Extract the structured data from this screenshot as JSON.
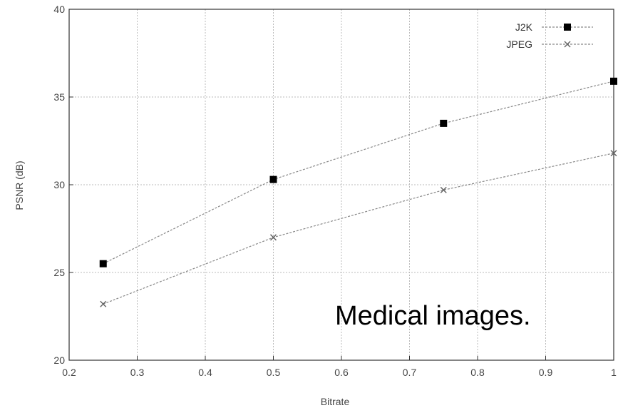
{
  "chart_data": {
    "type": "line",
    "title": "",
    "xlabel": "Bitrate",
    "ylabel": "PSNR (dB)",
    "xlim": [
      0.2,
      1
    ],
    "ylim": [
      20,
      40
    ],
    "x_ticks": [
      "0.2",
      "0.3",
      "0.4",
      "0.5",
      "0.6",
      "0.7",
      "0.8",
      "0.9",
      "1"
    ],
    "y_ticks": [
      "20",
      "25",
      "30",
      "35",
      "40"
    ],
    "grid": true,
    "legend_position": "top-right",
    "series": [
      {
        "name": "J2K",
        "marker": "square",
        "color": "#000000",
        "points": [
          {
            "x": 0.25,
            "y": 25.5
          },
          {
            "x": 0.5,
            "y": 30.3
          },
          {
            "x": 0.75,
            "y": 33.5
          },
          {
            "x": 1.0,
            "y": 35.9
          }
        ]
      },
      {
        "name": "JPEG",
        "marker": "x",
        "color": "#666666",
        "points": [
          {
            "x": 0.25,
            "y": 23.2
          },
          {
            "x": 0.5,
            "y": 27.0
          },
          {
            "x": 0.75,
            "y": 29.7
          },
          {
            "x": 1.0,
            "y": 31.8
          }
        ]
      }
    ],
    "annotation": "Medical images."
  }
}
